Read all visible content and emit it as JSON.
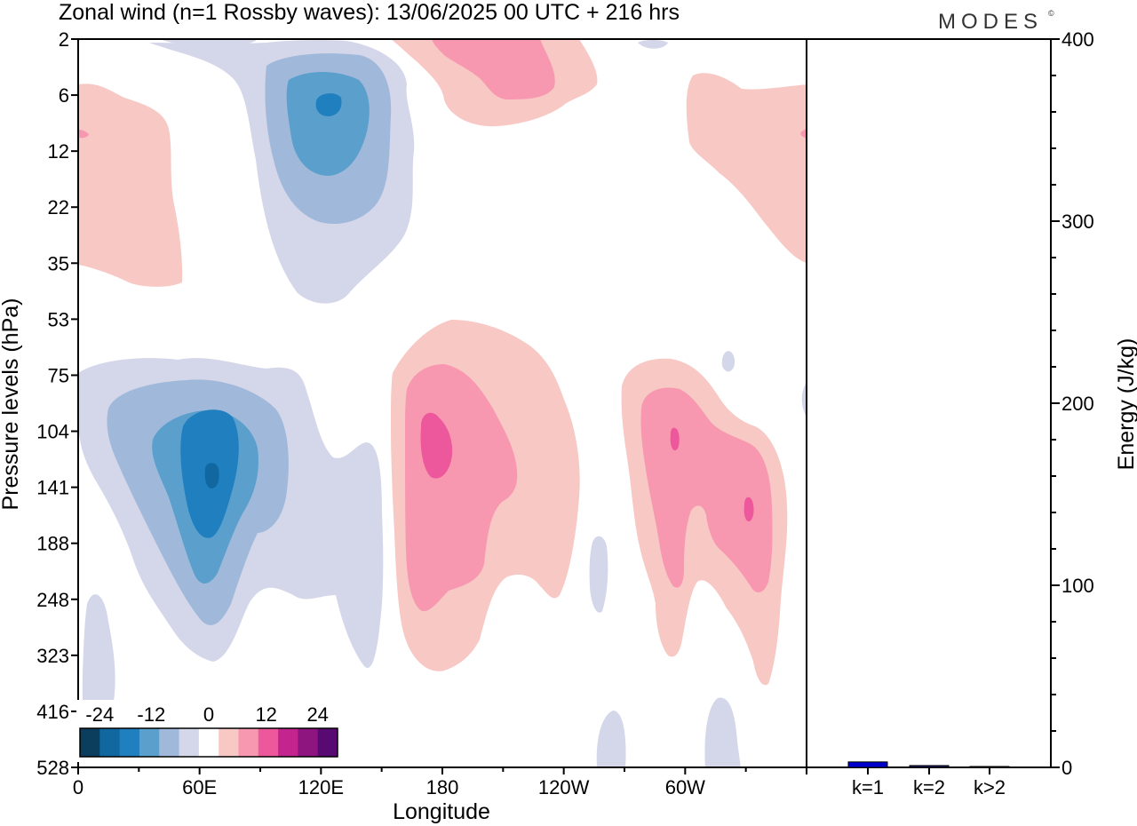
{
  "header": {
    "title": "Zonal wind (n=1 Rossby waves):  13/06/2025  00 UTC  + 216 hrs",
    "brand": "MODES",
    "brand_mark": "©"
  },
  "chart_data": [
    {
      "type": "heatmap",
      "title": "Zonal wind (n=1 Rossby waves):  13/06/2025  00 UTC  + 216 hrs",
      "xlabel": "Longitude",
      "ylabel": "Pressure levels (hPa)",
      "x_ticks": [
        "0",
        "60E",
        "120E",
        "180",
        "120W",
        "60W"
      ],
      "y_ticks": [
        "2",
        "6",
        "12",
        "22",
        "35",
        "53",
        "75",
        "104",
        "141",
        "188",
        "248",
        "323",
        "416",
        "528"
      ],
      "colorbar": {
        "tick_labels": [
          "-24",
          "-12",
          "0",
          "12",
          "24"
        ],
        "colors": [
          "#0b3d5c",
          "#11679f",
          "#1f7fbf",
          "#5b9fcd",
          "#a0b9da",
          "#d4d6e9",
          "#ffffff",
          "#f7c8c4",
          "#f798b0",
          "#ed579b",
          "#c3248e",
          "#8e1580",
          "#580a72"
        ]
      },
      "contours": {
        "neg1_color": "#d4d6e9",
        "neg2_color": "#a0b9da",
        "neg3_color": "#5b9fcd",
        "neg4_color": "#1f7fbf",
        "neg5_color": "#11679f",
        "pos1_color": "#f7c8c4",
        "pos2_color": "#f798b0",
        "pos3_color": "#ed579b"
      }
    },
    {
      "type": "bar",
      "categories": [
        "k=1",
        "k=2",
        "k>2"
      ],
      "values": [
        3,
        1,
        0.5
      ],
      "ylabel": "Energy (J/kg)",
      "ylim": [
        0,
        400
      ],
      "y_ticks": [
        "0",
        "100",
        "200",
        "300",
        "400"
      ],
      "bar_colors": [
        "#0000cc",
        "#1a1a66",
        "#1a1a66"
      ]
    }
  ]
}
